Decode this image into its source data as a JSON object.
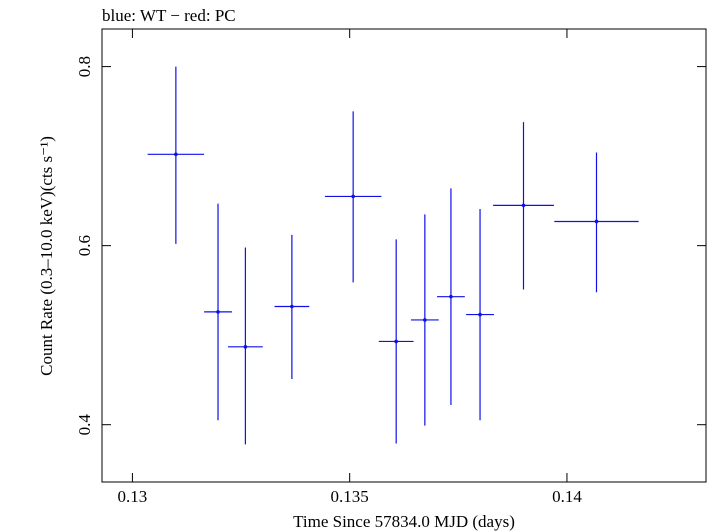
{
  "chart_data": {
    "type": "scatter",
    "title": "blue: WT − red: PC",
    "xlabel": "Time Since 57834.0 MJD (days)",
    "ylabel": "Count Rate (0.3–10.0 keV)(cts s⁻¹)",
    "xlim": [
      0.1293,
      0.1432
    ],
    "ylim": [
      0.336,
      0.842
    ],
    "x_ticks": [
      0.13,
      0.135,
      0.14
    ],
    "x_tick_labels": [
      "0.13",
      "0.135",
      "0.14"
    ],
    "y_ticks": [
      0.4,
      0.6,
      0.8
    ],
    "y_tick_labels": [
      "0.4",
      "0.6",
      "0.8"
    ],
    "grid": false,
    "colors": {
      "WT": "#1010e8",
      "PC": "#e81010"
    },
    "series": [
      {
        "color": "#1010e8",
        "points": [
          {
            "x": 0.131,
            "xerr": 0.00065,
            "y": 0.702,
            "yerr_low": 0.1,
            "yerr_high": 0.098
          },
          {
            "x": 0.13197,
            "xerr": 0.00032,
            "y": 0.526,
            "yerr_low": 0.121,
            "yerr_high": 0.121
          },
          {
            "x": 0.1326,
            "xerr": 0.0004,
            "y": 0.487,
            "yerr_low": 0.109,
            "yerr_high": 0.111
          },
          {
            "x": 0.13367,
            "xerr": 0.0004,
            "y": 0.532,
            "yerr_low": 0.081,
            "yerr_high": 0.08
          },
          {
            "x": 0.13508,
            "xerr": 0.00065,
            "y": 0.655,
            "yerr_low": 0.096,
            "yerr_high": 0.095
          },
          {
            "x": 0.13607,
            "xerr": 0.0004,
            "y": 0.493,
            "yerr_low": 0.114,
            "yerr_high": 0.114
          },
          {
            "x": 0.13673,
            "xerr": 0.00032,
            "y": 0.517,
            "yerr_low": 0.118,
            "yerr_high": 0.118
          },
          {
            "x": 0.13733,
            "xerr": 0.00032,
            "y": 0.543,
            "yerr_low": 0.121,
            "yerr_high": 0.121
          },
          {
            "x": 0.138,
            "xerr": 0.00032,
            "y": 0.523,
            "yerr_low": 0.118,
            "yerr_high": 0.118
          },
          {
            "x": 0.139,
            "xerr": 0.0007,
            "y": 0.645,
            "yerr_low": 0.094,
            "yerr_high": 0.093
          },
          {
            "x": 0.14068,
            "xerr": 0.00097,
            "y": 0.627,
            "yerr_low": 0.079,
            "yerr_high": 0.077
          }
        ]
      }
    ]
  }
}
